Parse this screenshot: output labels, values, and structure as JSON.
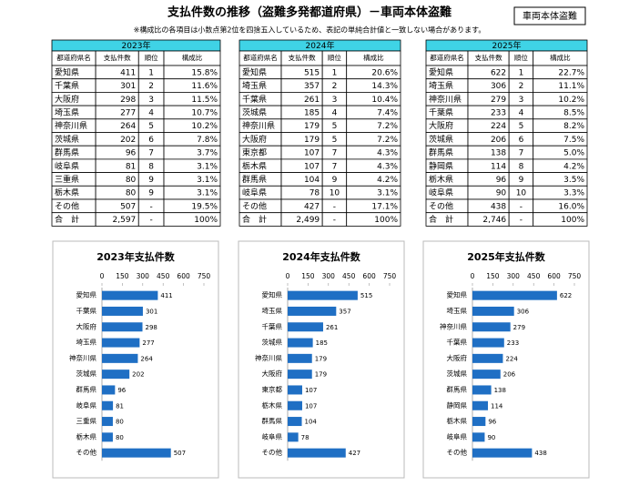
{
  "header": {
    "title": "支払件数の推移（盗難多発都道府県）－車両本体盗難",
    "badge": "車両本体盗難",
    "note": "※構成比の各項目は小数点第2位を四捨五入しているため、表記の単純合計値と一致しない場合があります。"
  },
  "tables": [
    {
      "year": "2023年",
      "columns": [
        "都道府県名",
        "支払件数",
        "順位",
        "構成比"
      ],
      "rows": [
        [
          "愛知県",
          "411",
          "1",
          "15.8%"
        ],
        [
          "千葉県",
          "301",
          "2",
          "11.6%"
        ],
        [
          "大阪府",
          "298",
          "3",
          "11.5%"
        ],
        [
          "埼玉県",
          "277",
          "4",
          "10.7%"
        ],
        [
          "神奈川県",
          "264",
          "5",
          "10.2%"
        ],
        [
          "茨城県",
          "202",
          "6",
          "7.8%"
        ],
        [
          "群馬県",
          "96",
          "7",
          "3.7%"
        ],
        [
          "岐阜県",
          "81",
          "8",
          "3.1%"
        ],
        [
          "三重県",
          "80",
          "9",
          "3.1%"
        ],
        [
          "栃木県",
          "80",
          "9",
          "3.1%"
        ],
        [
          "その他",
          "507",
          "-",
          "19.5%"
        ],
        [
          "合　計",
          "2,597",
          "-",
          "100%"
        ]
      ]
    },
    {
      "year": "2024年",
      "columns": [
        "都道府県名",
        "支払件数",
        "順位",
        "構成比"
      ],
      "rows": [
        [
          "愛知県",
          "515",
          "1",
          "20.6%"
        ],
        [
          "埼玉県",
          "357",
          "2",
          "14.3%"
        ],
        [
          "千葉県",
          "261",
          "3",
          "10.4%"
        ],
        [
          "茨城県",
          "185",
          "4",
          "7.4%"
        ],
        [
          "神奈川県",
          "179",
          "5",
          "7.2%"
        ],
        [
          "大阪府",
          "179",
          "5",
          "7.2%"
        ],
        [
          "東京都",
          "107",
          "7",
          "4.3%"
        ],
        [
          "栃木県",
          "107",
          "7",
          "4.3%"
        ],
        [
          "群馬県",
          "104",
          "9",
          "4.2%"
        ],
        [
          "岐阜県",
          "78",
          "10",
          "3.1%"
        ],
        [
          "その他",
          "427",
          "-",
          "17.1%"
        ],
        [
          "合　計",
          "2,499",
          "-",
          "100%"
        ]
      ]
    },
    {
      "year": "2025年",
      "columns": [
        "都道府県名",
        "支払件数",
        "順位",
        "構成比"
      ],
      "rows": [
        [
          "愛知県",
          "622",
          "1",
          "22.7%"
        ],
        [
          "埼玉県",
          "306",
          "2",
          "11.1%"
        ],
        [
          "神奈川県",
          "279",
          "3",
          "10.2%"
        ],
        [
          "千葉県",
          "233",
          "4",
          "8.5%"
        ],
        [
          "大阪府",
          "224",
          "5",
          "8.2%"
        ],
        [
          "茨城県",
          {
            "text": "206"
          },
          {
            "text": "6",
            "color": "#e02020"
          },
          "7.5%"
        ],
        [
          "群馬県",
          "138",
          "7",
          "5.0%"
        ],
        [
          "静岡県",
          "114",
          {
            "text": "8",
            "color": "#e02020"
          },
          "4.2%"
        ],
        [
          "栃木県",
          "96",
          "9",
          "3.5%"
        ],
        [
          "岐阜県",
          "90",
          "10",
          "3.3%"
        ],
        [
          "その他",
          "438",
          "-",
          "16.0%"
        ],
        [
          "合　計",
          "2,746",
          "-",
          "100%"
        ]
      ]
    }
  ],
  "chart_data": [
    {
      "type": "bar",
      "title": "2023年支払件数",
      "categories": [
        "愛知県",
        "千葉県",
        "大阪府",
        "埼玉県",
        "神奈川県",
        "茨城県",
        "群馬県",
        "岐阜県",
        "三重県",
        "栃木県",
        "その他"
      ],
      "values": [
        411,
        301,
        298,
        277,
        264,
        202,
        96,
        81,
        80,
        80,
        507
      ],
      "color": "#1f6fc4",
      "xlim": [
        0,
        750
      ],
      "xticks": [
        0,
        150,
        300,
        450,
        600,
        750
      ]
    },
    {
      "type": "bar",
      "title": "2024年支払件数",
      "categories": [
        "愛知県",
        "埼玉県",
        "千葉県",
        "茨城県",
        "神奈川県",
        "大阪府",
        "東京都",
        "栃木県",
        "群馬県",
        "岐阜県",
        "その他"
      ],
      "values": [
        515,
        357,
        261,
        185,
        179,
        179,
        107,
        107,
        104,
        78,
        427
      ],
      "color": "#1f6fc4",
      "xlim": [
        0,
        750
      ],
      "xticks": [
        0,
        150,
        300,
        450,
        600,
        750
      ]
    },
    {
      "type": "bar",
      "title": "2025年支払件数",
      "categories": [
        "愛知県",
        "埼玉県",
        "神奈川県",
        "千葉県",
        "大阪府",
        "茨城県",
        "群馬県",
        "静岡県",
        "栃木県",
        "岐阜県",
        "その他"
      ],
      "values": [
        622,
        306,
        279,
        233,
        224,
        206,
        138,
        114,
        96,
        90,
        438
      ],
      "color": "#1f6fc4",
      "xlim": [
        0,
        750
      ],
      "xticks": [
        0,
        150,
        300,
        450,
        600,
        750
      ]
    }
  ]
}
